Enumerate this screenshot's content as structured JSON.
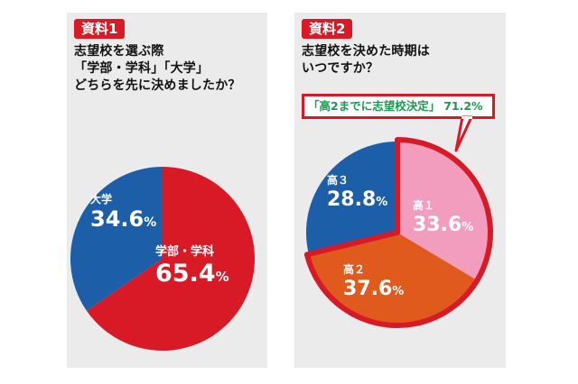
{
  "panel1": {
    "tag": "資料1",
    "question_lines": [
      "志望校を選ぶ際",
      "「学部・学科」「大学」",
      "どちらを先に決めましたか？"
    ]
  },
  "panel2": {
    "tag": "資料2",
    "question_lines": [
      "志望校を決めた時期は",
      "いつですか？"
    ],
    "callout": {
      "label": "「高2までに志望校決定」",
      "value": "71.2%"
    }
  },
  "colors": {
    "red": "#d81a26",
    "blue": "#1c5ea8",
    "pink": "#f29dbd",
    "orange": "#e05a1e",
    "callout_text": "#1a9a50",
    "panel_bg": "#ebebeb"
  },
  "chart_data": [
    {
      "type": "pie",
      "title": "志望校を選ぶ際「学部・学科」「大学」どちらを先に決めましたか？",
      "slices": [
        {
          "label": "学部・学科",
          "value": 65.4,
          "display": "65.4",
          "unit": "%",
          "color": "#d81a26"
        },
        {
          "label": "大学",
          "value": 34.6,
          "display": "34.6",
          "unit": "%",
          "color": "#1c5ea8"
        }
      ]
    },
    {
      "type": "pie",
      "title": "志望校を決めた時期はいつですか？",
      "slices": [
        {
          "label": "高１",
          "value": 33.6,
          "display": "33.6",
          "unit": "%",
          "color": "#f29dbd"
        },
        {
          "label": "高２",
          "value": 37.6,
          "display": "37.6",
          "unit": "%",
          "color": "#e05a1e"
        },
        {
          "label": "高３",
          "value": 28.8,
          "display": "28.8",
          "unit": "%",
          "color": "#1c5ea8"
        }
      ],
      "highlight": [
        "高１",
        "高２"
      ]
    }
  ]
}
